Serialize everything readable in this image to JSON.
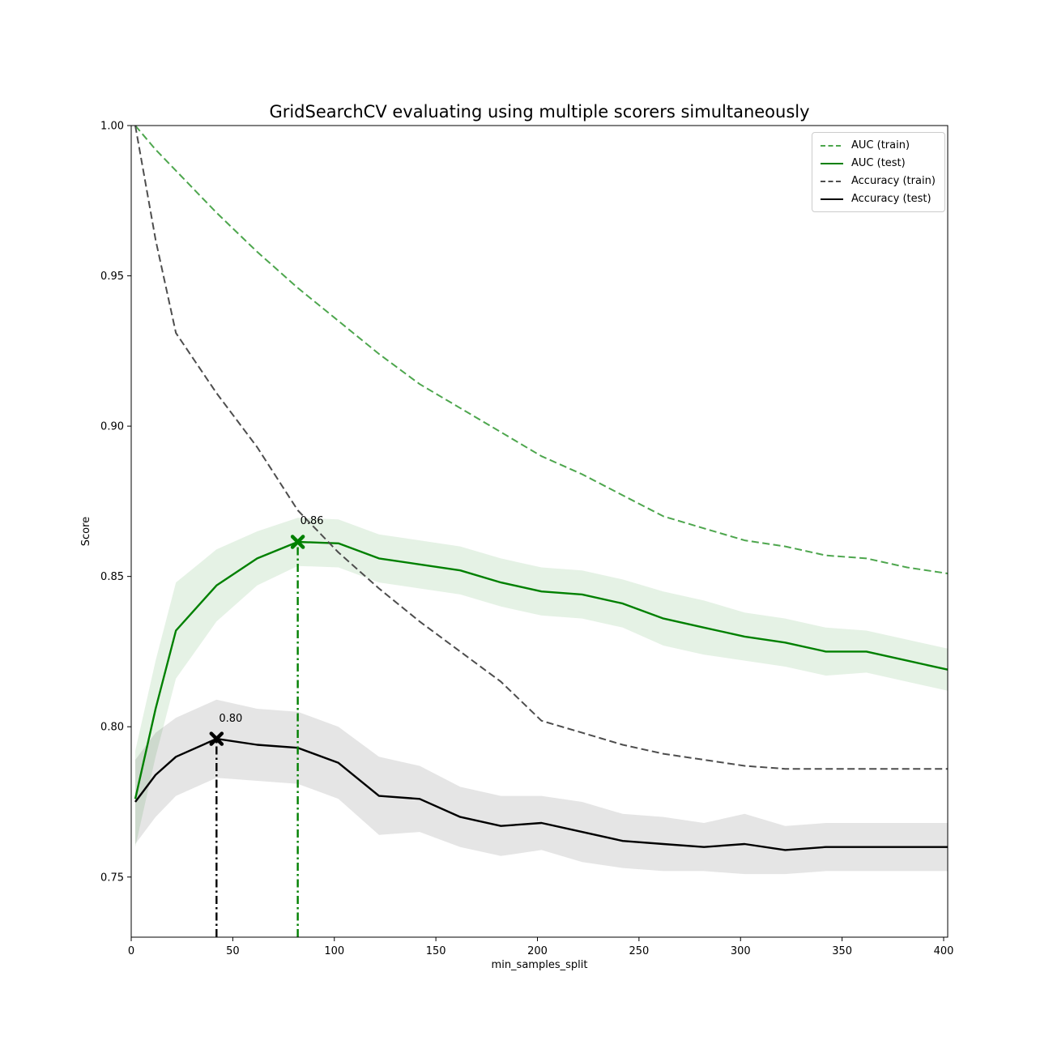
{
  "chart_data": {
    "type": "line",
    "title": "GridSearchCV evaluating using multiple scorers simultaneously",
    "xlabel": "min_samples_split",
    "ylabel": "Score",
    "xlim": [
      0,
      402
    ],
    "ylim": [
      0.73,
      1.0
    ],
    "xticks": [
      0,
      50,
      100,
      150,
      200,
      250,
      300,
      350,
      400
    ],
    "yticks": [
      "0.75",
      "0.80",
      "0.85",
      "0.90",
      "0.95",
      "1.00"
    ],
    "grid": false,
    "legend_position": "upper right",
    "x": [
      2,
      12,
      22,
      42,
      62,
      82,
      102,
      122,
      142,
      162,
      182,
      202,
      222,
      242,
      262,
      282,
      302,
      322,
      342,
      362,
      382,
      402
    ],
    "series": [
      {
        "name": "AUC (train)",
        "style": "dashed",
        "color": "#4DA64D",
        "values": [
          1.0,
          0.992,
          0.985,
          0.971,
          0.958,
          0.946,
          0.935,
          0.924,
          0.914,
          0.906,
          0.898,
          0.89,
          0.884,
          0.877,
          0.87,
          0.866,
          0.862,
          0.86,
          0.857,
          0.856,
          0.853,
          0.851
        ]
      },
      {
        "name": "AUC (test)",
        "style": "solid",
        "color": "#008000",
        "values": [
          0.776,
          0.806,
          0.832,
          0.847,
          0.856,
          0.8615,
          0.861,
          0.856,
          0.854,
          0.852,
          0.848,
          0.845,
          0.844,
          0.841,
          0.836,
          0.833,
          0.83,
          0.828,
          0.825,
          0.825,
          0.822,
          0.819
        ],
        "std": [
          0.016,
          0.016,
          0.016,
          0.012,
          0.009,
          0.008,
          0.008,
          0.008,
          0.008,
          0.008,
          0.008,
          0.008,
          0.008,
          0.008,
          0.009,
          0.009,
          0.008,
          0.008,
          0.008,
          0.007,
          0.007,
          0.007
        ]
      },
      {
        "name": "Accuracy (train)",
        "style": "dashed",
        "color": "#4D4D4D",
        "values": [
          1.0,
          0.962,
          0.931,
          0.911,
          0.893,
          0.872,
          0.858,
          0.846,
          0.835,
          0.825,
          0.815,
          0.802,
          0.798,
          0.794,
          0.791,
          0.789,
          0.787,
          0.786,
          0.786,
          0.786,
          0.786,
          0.786
        ]
      },
      {
        "name": "Accuracy (test)",
        "style": "solid",
        "color": "#000000",
        "values": [
          0.775,
          0.784,
          0.79,
          0.796,
          0.794,
          0.793,
          0.788,
          0.777,
          0.776,
          0.77,
          0.767,
          0.768,
          0.765,
          0.762,
          0.761,
          0.76,
          0.761,
          0.759,
          0.76,
          0.76,
          0.76,
          0.76
        ],
        "std": [
          0.014,
          0.014,
          0.013,
          0.013,
          0.012,
          0.012,
          0.012,
          0.013,
          0.011,
          0.01,
          0.01,
          0.009,
          0.01,
          0.009,
          0.009,
          0.008,
          0.01,
          0.008,
          0.008,
          0.008,
          0.008,
          0.008
        ]
      }
    ],
    "best_markers": [
      {
        "series": "AUC (test)",
        "x": 82,
        "y": 0.8615,
        "label": "0.86",
        "color": "#008000",
        "line_style": "dashdot"
      },
      {
        "series": "Accuracy (test)",
        "x": 42,
        "y": 0.796,
        "label": "0.80",
        "color": "#000000",
        "line_style": "dashdot"
      }
    ],
    "band_fill_opacity": 0.1,
    "axis_color": "#000000"
  },
  "legend": {
    "items": [
      {
        "label": "AUC (train)"
      },
      {
        "label": "AUC (test)"
      },
      {
        "label": "Accuracy (train)"
      },
      {
        "label": "Accuracy (test)"
      }
    ]
  }
}
